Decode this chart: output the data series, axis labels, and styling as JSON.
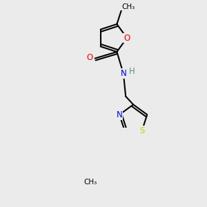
{
  "bg_color": "#ebebeb",
  "atom_colors": {
    "C": "#000000",
    "H": "#5a9090",
    "N": "#0000ff",
    "O": "#ff0000",
    "S": "#cccc00"
  },
  "bond_color": "#000000",
  "bond_width": 1.5
}
